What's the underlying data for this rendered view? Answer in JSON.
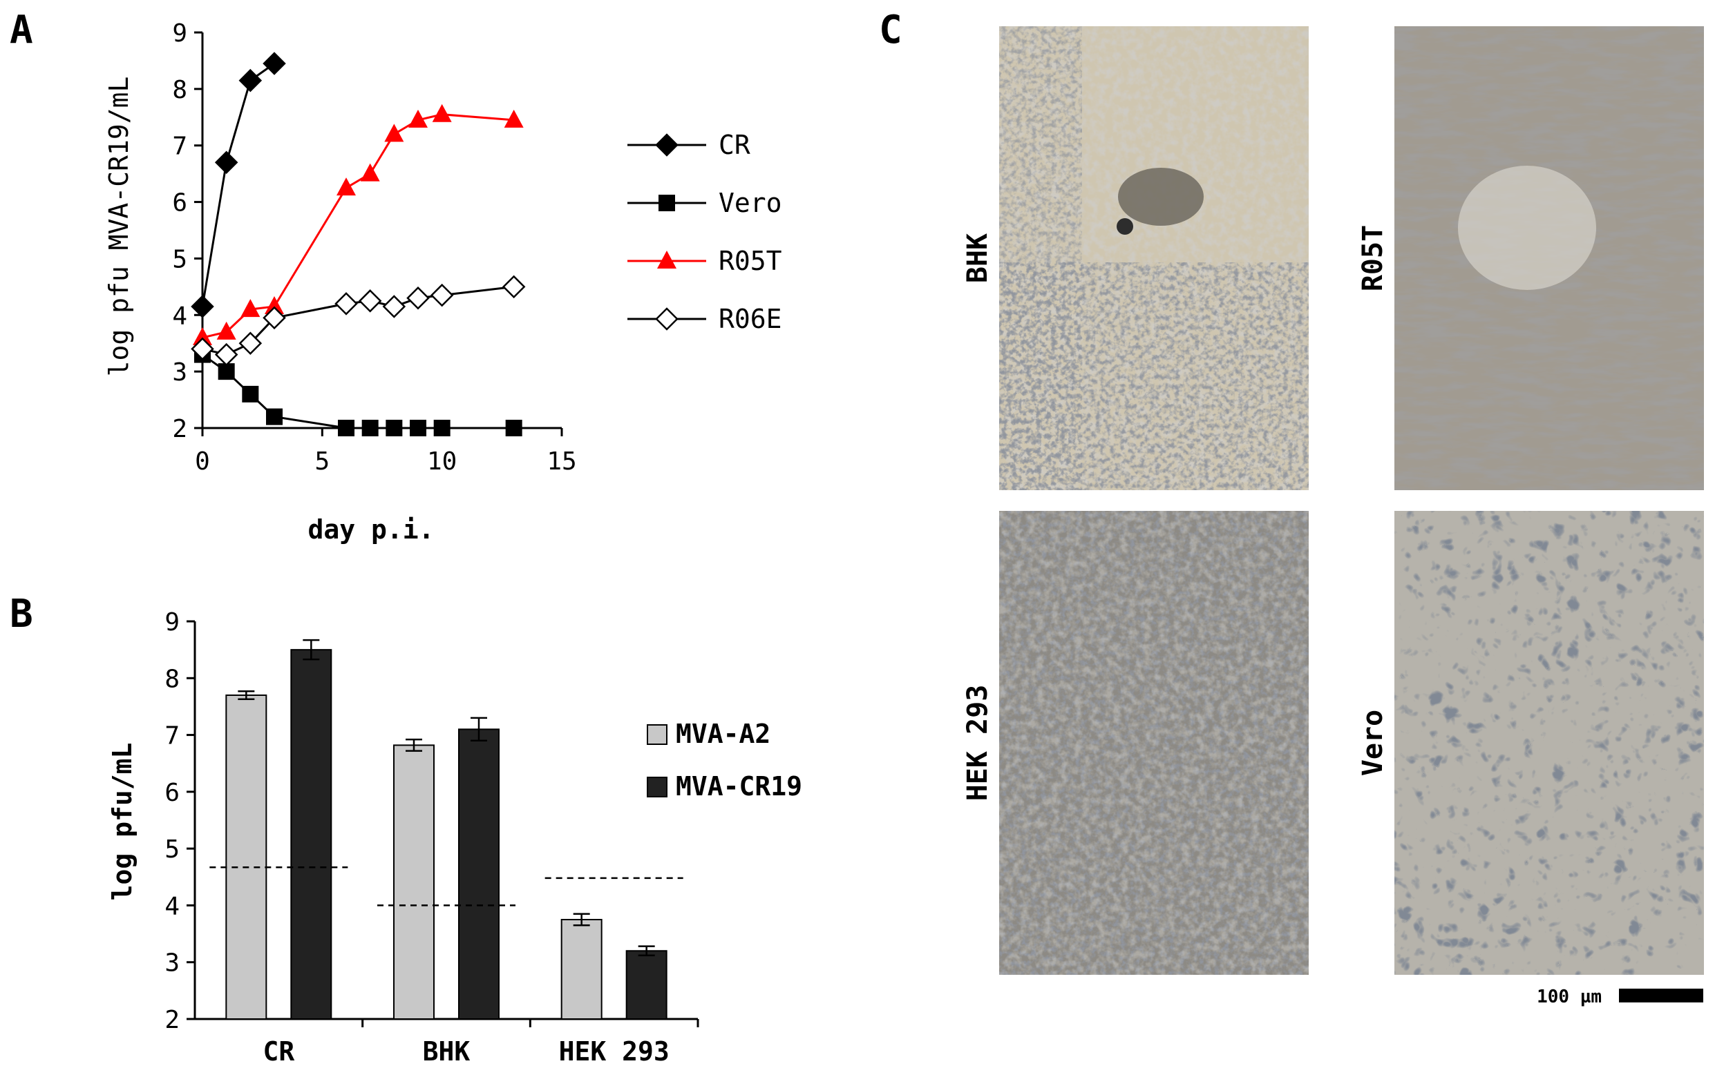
{
  "panels": {
    "a": "A",
    "b": "B",
    "c": "C"
  },
  "colors": {
    "black": "#000000",
    "red": "#ff0000",
    "bar_light": "#c8c8c8",
    "bar_dark": "#222222"
  },
  "chart_data": [
    {
      "id": "A",
      "type": "line",
      "xlabel": "day p.i.",
      "ylabel": "log pfu MVA-CR19/mL",
      "xlim": [
        0,
        15
      ],
      "ylim": [
        2,
        9
      ],
      "xticks": [
        0,
        5,
        10,
        15
      ],
      "yticks": [
        2,
        3,
        4,
        5,
        6,
        7,
        8,
        9
      ],
      "legend_position": "right",
      "series": [
        {
          "name": "CR",
          "marker": "diamond-filled",
          "color": "#000000",
          "x": [
            0,
            1,
            2,
            3
          ],
          "y": [
            4.15,
            6.7,
            8.15,
            8.45
          ]
        },
        {
          "name": "Vero",
          "marker": "square-filled",
          "color": "#000000",
          "x": [
            0,
            1,
            2,
            3,
            6,
            7,
            8,
            9,
            10,
            13
          ],
          "y": [
            3.3,
            3.0,
            2.6,
            2.2,
            2.0,
            2.0,
            2.0,
            2.0,
            2.0,
            2.0
          ]
        },
        {
          "name": "R05T",
          "marker": "triangle-filled",
          "color": "#ff0000",
          "x": [
            0,
            1,
            2,
            3,
            6,
            7,
            8,
            9,
            10,
            13
          ],
          "y": [
            3.6,
            3.7,
            4.1,
            4.15,
            6.25,
            6.5,
            7.2,
            7.45,
            7.55,
            7.45
          ]
        },
        {
          "name": "R06E",
          "marker": "diamond-open",
          "color": "#000000",
          "x": [
            0,
            1,
            2,
            3,
            6,
            7,
            8,
            9,
            10,
            13
          ],
          "y": [
            3.4,
            3.3,
            3.5,
            3.95,
            4.2,
            4.25,
            4.15,
            4.3,
            4.35,
            4.5
          ]
        }
      ]
    },
    {
      "id": "B",
      "type": "bar",
      "ylabel": "log pfu/mL",
      "ylim": [
        2,
        9
      ],
      "yticks": [
        2,
        3,
        4,
        5,
        6,
        7,
        8,
        9
      ],
      "categories": [
        "CR",
        "BHK",
        "HEK 293"
      ],
      "series": [
        {
          "name": "MVA-A2",
          "color": "#c8c8c8",
          "values": [
            7.7,
            6.82,
            3.75
          ],
          "errors": [
            0.07,
            0.1,
            0.1
          ]
        },
        {
          "name": "MVA-CR19",
          "color": "#222222",
          "values": [
            8.5,
            7.1,
            3.2
          ],
          "errors": [
            0.17,
            0.2,
            0.08
          ]
        }
      ],
      "thresholds": [
        4.67,
        4.0,
        4.48
      ]
    }
  ],
  "micrographs": {
    "labels": [
      "BHK",
      "R05T",
      "HEK 293",
      "Vero"
    ],
    "scale_bar": "100 µm"
  }
}
